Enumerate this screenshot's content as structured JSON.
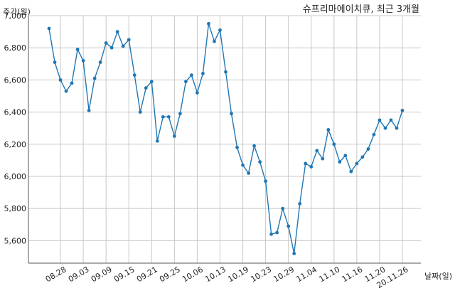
{
  "chart_data": {
    "type": "line",
    "title": "슈프리마에이치큐, 최근 3개월",
    "ylabel": "주가(원)",
    "xlabel": "날짜(일)",
    "ylim": [
      5460,
      7000
    ],
    "yticks": [
      5600,
      5800,
      6000,
      6200,
      6400,
      6600,
      6800,
      7000
    ],
    "ytick_labels": [
      "5,600",
      "5,800",
      "6,000",
      "6,200",
      "6,400",
      "6,600",
      "6,800",
      "7,000"
    ],
    "xtick_labels": [
      "08.28",
      "09.03",
      "09.09",
      "09.15",
      "09.21",
      "09.25",
      "10.06",
      "10.13",
      "10.19",
      "10.23",
      "10.29",
      "11.04",
      "11.10",
      "11.16",
      "11.20",
      "20.11.26"
    ],
    "xtick_indices": [
      2,
      6,
      10,
      14,
      18,
      22,
      26,
      30,
      34,
      38,
      42,
      46,
      50,
      54,
      58,
      62
    ],
    "grid": true,
    "line_color": "#1f77b4",
    "series": [
      {
        "values": [
          6920,
          6710,
          6600,
          6530,
          6580,
          6790,
          6720,
          6410,
          6610,
          6710,
          6830,
          6800,
          6900,
          6810,
          6850,
          6630,
          6400,
          6550,
          6590,
          6220,
          6370,
          6370,
          6250,
          6390,
          6590,
          6630,
          6520,
          6640,
          6950,
          6840,
          6910,
          6650,
          6390,
          6180,
          6070,
          6020,
          6190,
          6090,
          5970,
          5640,
          5650,
          5800,
          5690,
          5520,
          5830,
          6080,
          6060,
          6160,
          6110,
          6290,
          6200,
          6090,
          6130,
          6030,
          6080,
          6120,
          6170,
          6260,
          6350,
          6300,
          6350,
          6300,
          6410
        ]
      }
    ]
  }
}
